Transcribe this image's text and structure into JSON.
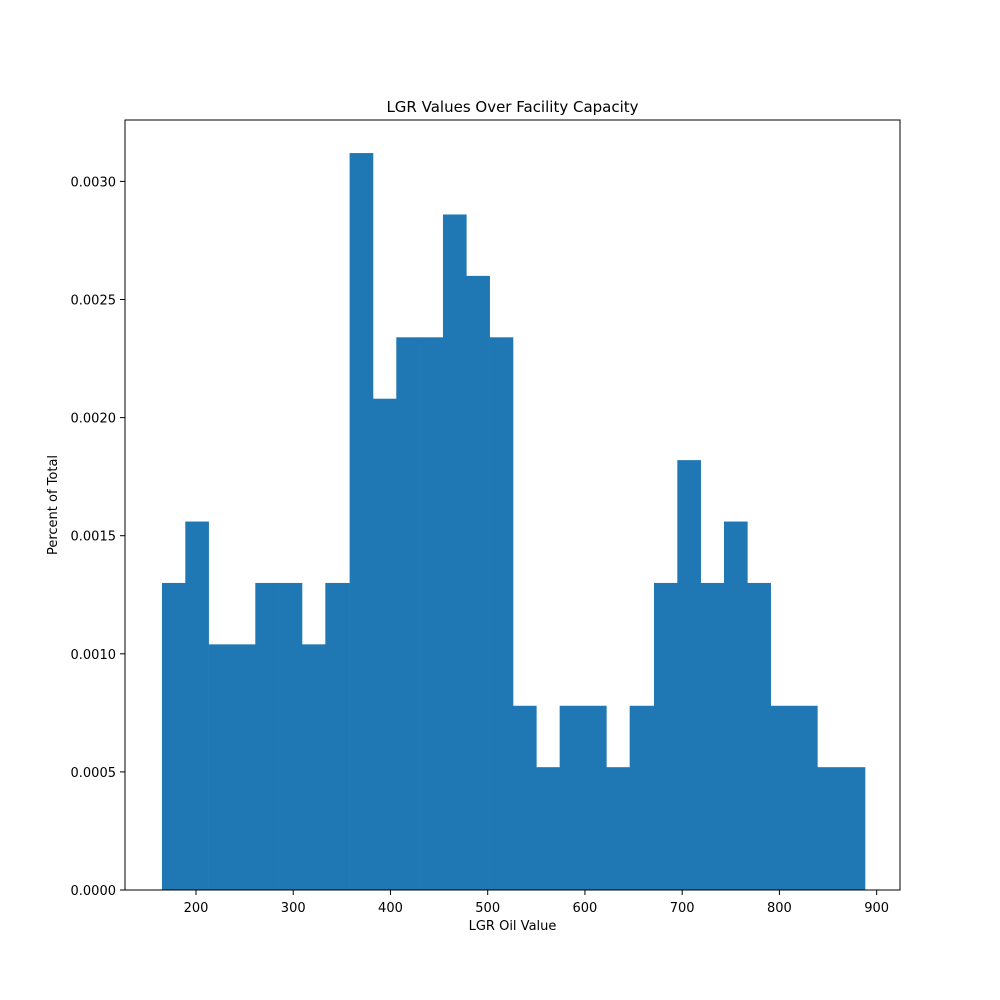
{
  "chart_data": {
    "type": "bar",
    "subtype": "histogram",
    "title": "LGR Values Over Facility Capacity",
    "xlabel": "LGR Oil Value",
    "ylabel": "Percent of Total",
    "xlim": [
      127,
      924
    ],
    "ylim": [
      0,
      0.00326
    ],
    "xticks": [
      200,
      300,
      400,
      500,
      600,
      700,
      800,
      900
    ],
    "xtick_labels": [
      "200",
      "300",
      "400",
      "500",
      "600",
      "700",
      "800",
      "900"
    ],
    "yticks": [
      0,
      0.0005,
      0.001,
      0.0015,
      0.002,
      0.0025,
      0.003
    ],
    "ytick_labels": [
      "0.0000",
      "0.0005",
      "0.0010",
      "0.0015",
      "0.0020",
      "0.0025",
      "0.0030"
    ],
    "grid": false,
    "bar_color": "#1f77b4",
    "bin_edges": [
      165,
      189,
      213,
      237,
      261,
      285,
      309,
      333,
      358,
      382,
      406,
      430,
      454,
      478,
      502,
      526,
      550,
      574,
      598,
      622,
      646,
      671,
      695,
      719,
      743,
      767,
      791,
      815,
      839,
      863,
      888
    ],
    "values": [
      0.0013,
      0.00156,
      0.00104,
      0.00104,
      0.0013,
      0.0013,
      0.00104,
      0.0013,
      0.00312,
      0.00208,
      0.00234,
      0.00234,
      0.00286,
      0.0026,
      0.00234,
      0.00078,
      0.00052,
      0.00078,
      0.00078,
      0.00052,
      0.00078,
      0.0013,
      0.00182,
      0.0013,
      0.00156,
      0.0013,
      0.00078,
      0.00078,
      0.00052,
      0.00052
    ]
  }
}
